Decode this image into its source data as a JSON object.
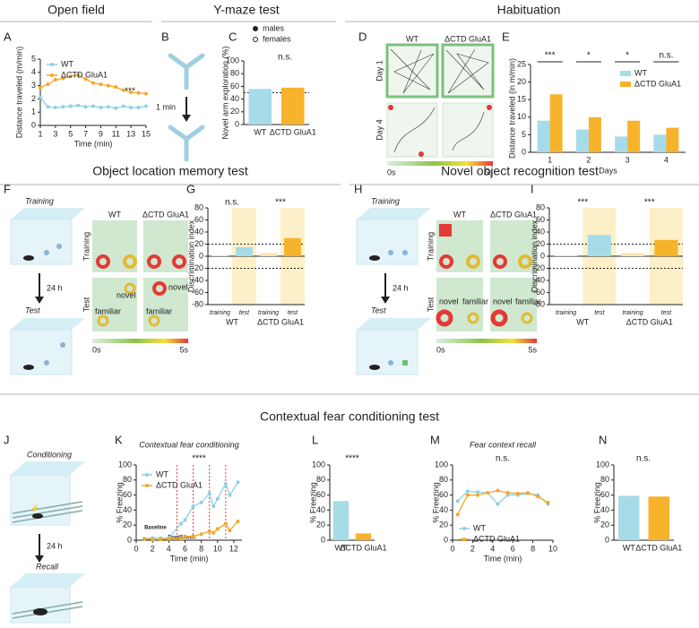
{
  "figure": {
    "sections": [
      "Open field",
      "Y-maze test",
      "Habituation",
      "Object location memory test",
      "Novel object recognition test",
      "Contextual fear conditioning test"
    ],
    "panels": [
      "A",
      "B",
      "C",
      "D",
      "E",
      "F",
      "G",
      "H",
      "I",
      "J",
      "K",
      "L",
      "M",
      "N"
    ],
    "ymaze_time": "1 min",
    "track": {
      "groups": [
        "WT",
        "ΔCTD GluA1"
      ],
      "days": [
        "Day 1",
        "Day 4"
      ],
      "scale": [
        "0s",
        "5s"
      ]
    },
    "olm": {
      "steps": [
        "Training",
        "24 h",
        "Test"
      ],
      "groups": [
        "WT",
        "ΔCTD GluA1"
      ],
      "phases": [
        "Training",
        "Test"
      ],
      "objects": [
        "novel",
        "familiar",
        "novel",
        "familiar"
      ],
      "scale": [
        "0s",
        "5s"
      ]
    },
    "nor": {
      "steps": [
        "Training",
        "24 h",
        "Test"
      ],
      "groups": [
        "WT",
        "ΔCTD GluA1"
      ],
      "phases": [
        "Training",
        "Test"
      ],
      "objects": [
        "novel",
        "familiar",
        "novel",
        "familiar"
      ],
      "scale": [
        "0s",
        "5s"
      ]
    },
    "cfc": {
      "steps": [
        "Conditioning",
        "24 h",
        "Recall"
      ]
    }
  },
  "chart_data": [
    {
      "type": "line",
      "ylabel": "Distance traveled (m/min)",
      "xlabel": "Time (min)",
      "x": [
        1,
        2,
        3,
        4,
        5,
        6,
        7,
        8,
        9,
        10,
        11,
        12,
        13,
        14,
        15
      ],
      "series": [
        {
          "name": "WT",
          "color": "#8fd0e4",
          "values": [
            2.1,
            1.4,
            1.35,
            1.4,
            1.45,
            1.5,
            1.4,
            1.45,
            1.35,
            1.4,
            1.3,
            1.45,
            1.35,
            1.35,
            1.45
          ]
        },
        {
          "name": "ΔCTD GluA1",
          "color": "#f5a623",
          "values": [
            2.85,
            3.1,
            3.45,
            3.55,
            3.7,
            3.8,
            3.5,
            3.2,
            3.1,
            3.0,
            2.9,
            2.65,
            2.5,
            2.45,
            2.4
          ]
        }
      ],
      "xlim": [
        1,
        15
      ],
      "xticks": [
        1,
        3,
        5,
        7,
        9,
        11,
        13,
        15
      ],
      "ylim": [
        0,
        5
      ],
      "yticks": [
        0,
        1,
        2,
        3,
        4,
        5
      ],
      "annotation": "***"
    },
    {
      "type": "bar",
      "ylabel": "Novel arm exploration (%)",
      "categories": [
        "WT",
        "ΔCTD GluA1"
      ],
      "values": [
        56,
        58
      ],
      "colors": [
        "#a6dbe8",
        "#f7b32b"
      ],
      "ylim": [
        0,
        100
      ],
      "yticks": [
        0,
        20,
        40,
        60,
        80,
        100
      ],
      "annotation": "n.s.",
      "marker_legend": [
        "males",
        "females"
      ],
      "ref_lines": [
        50
      ]
    },
    {
      "type": "grouped-bar",
      "ylabel": "Distance traveled (in m/min)",
      "xlabel": "Days",
      "categories": [
        "1",
        "2",
        "3",
        "4"
      ],
      "series": [
        {
          "name": "WT",
          "color": "#a6dbe8",
          "values": [
            9,
            6.5,
            4.5,
            5
          ]
        },
        {
          "name": "ΔCTD GluA1",
          "color": "#f7b32b",
          "values": [
            16.5,
            10,
            9,
            7
          ]
        }
      ],
      "ylim": [
        0,
        25
      ],
      "yticks": [
        0,
        5,
        10,
        15,
        20,
        25
      ],
      "annotations": [
        "***",
        "*",
        "*",
        "n.s."
      ]
    },
    {
      "type": "bar",
      "ylabel": "Discrimination index",
      "categories": [
        "training",
        "test",
        "training",
        "test"
      ],
      "groups": [
        "WT",
        "ΔCTD GluA1"
      ],
      "values": [
        2,
        15,
        5,
        30
      ],
      "colors": [
        "#d8eef4",
        "#a6dbe8",
        "#fde3b0",
        "#f7b32b"
      ],
      "ylim": [
        -80,
        80
      ],
      "yticks": [
        -80,
        -60,
        -40,
        -20,
        0,
        20,
        40,
        60,
        80
      ],
      "annotations": [
        "n.s.",
        "***"
      ],
      "ref_lines": [
        20,
        -20
      ]
    },
    {
      "type": "bar",
      "ylabel": "Discrimination index",
      "categories": [
        "training",
        "test",
        "training",
        "test"
      ],
      "groups": [
        "WT",
        "ΔCTD GluA1"
      ],
      "values": [
        2,
        35,
        5,
        27
      ],
      "colors": [
        "#d8eef4",
        "#a6dbe8",
        "#fde3b0",
        "#f7b32b"
      ],
      "ylim": [
        -80,
        80
      ],
      "yticks": [
        -80,
        -60,
        -40,
        -20,
        0,
        20,
        40,
        60,
        80
      ],
      "annotations": [
        "***",
        "***"
      ],
      "ref_lines": [
        20,
        -20
      ]
    },
    {
      "type": "line",
      "title": "Contextual fear conditioning",
      "ylabel": "% Freezing",
      "xlabel": "Time (min)",
      "x": [
        1,
        2,
        3,
        4,
        5.5,
        6,
        7,
        8,
        9,
        9.5,
        10,
        11,
        11.5,
        12.5
      ],
      "series": [
        {
          "name": "WT",
          "color": "#8fd0e4",
          "values": [
            2,
            3,
            3,
            3,
            22,
            27,
            45,
            50,
            62,
            45,
            55,
            75,
            60,
            77
          ]
        },
        {
          "name": "ΔCTD GluA1",
          "color": "#f5a623",
          "values": [
            2,
            1,
            1,
            2,
            2,
            5,
            5,
            8,
            12,
            10,
            15,
            22,
            13,
            25
          ]
        }
      ],
      "xlim": [
        0,
        13
      ],
      "xticks": [
        0,
        2,
        4,
        6,
        8,
        10,
        12
      ],
      "ylim": [
        0,
        100
      ],
      "yticks": [
        0,
        20,
        40,
        60,
        80,
        100
      ],
      "annotation": "****",
      "baseline_label": "Baseline",
      "shock_label": "FootShock",
      "shock_x": [
        5,
        7,
        9,
        11
      ]
    },
    {
      "type": "bar",
      "ylabel": "% Freezing",
      "categories": [
        "WT",
        "ΔCTD GluA1"
      ],
      "values": [
        52,
        9
      ],
      "colors": [
        "#a6dbe8",
        "#f7b32b"
      ],
      "ylim": [
        0,
        100
      ],
      "yticks": [
        0,
        20,
        40,
        60,
        80,
        100
      ],
      "annotation": "****"
    },
    {
      "type": "line",
      "title": "Fear context recall",
      "ylabel": "% Freezing",
      "xlabel": "Time (min)",
      "x": [
        0.5,
        1.5,
        2.5,
        3.5,
        4.5,
        5.5,
        6.5,
        7.5,
        8.5,
        9.5
      ],
      "series": [
        {
          "name": "WT",
          "color": "#8fd0e4",
          "values": [
            52,
            65,
            64,
            63,
            48,
            60,
            60,
            62,
            60,
            48
          ]
        },
        {
          "name": "ΔCTD GluA1",
          "color": "#f5a623",
          "values": [
            34,
            60,
            60,
            63,
            66,
            63,
            62,
            63,
            58,
            50
          ]
        }
      ],
      "xlim": [
        0,
        10
      ],
      "xticks": [
        0,
        2,
        4,
        6,
        8,
        10
      ],
      "ylim": [
        0,
        100
      ],
      "yticks": [
        0,
        20,
        40,
        60,
        80,
        100
      ],
      "annotation": "n.s."
    },
    {
      "type": "bar",
      "ylabel": "% Freezing",
      "categories": [
        "WT",
        "ΔCTD GluA1"
      ],
      "values": [
        59,
        58
      ],
      "colors": [
        "#a6dbe8",
        "#f7b32b"
      ],
      "ylim": [
        0,
        100
      ],
      "yticks": [
        0,
        20,
        40,
        60,
        80,
        100
      ],
      "annotation": "n.s."
    }
  ]
}
